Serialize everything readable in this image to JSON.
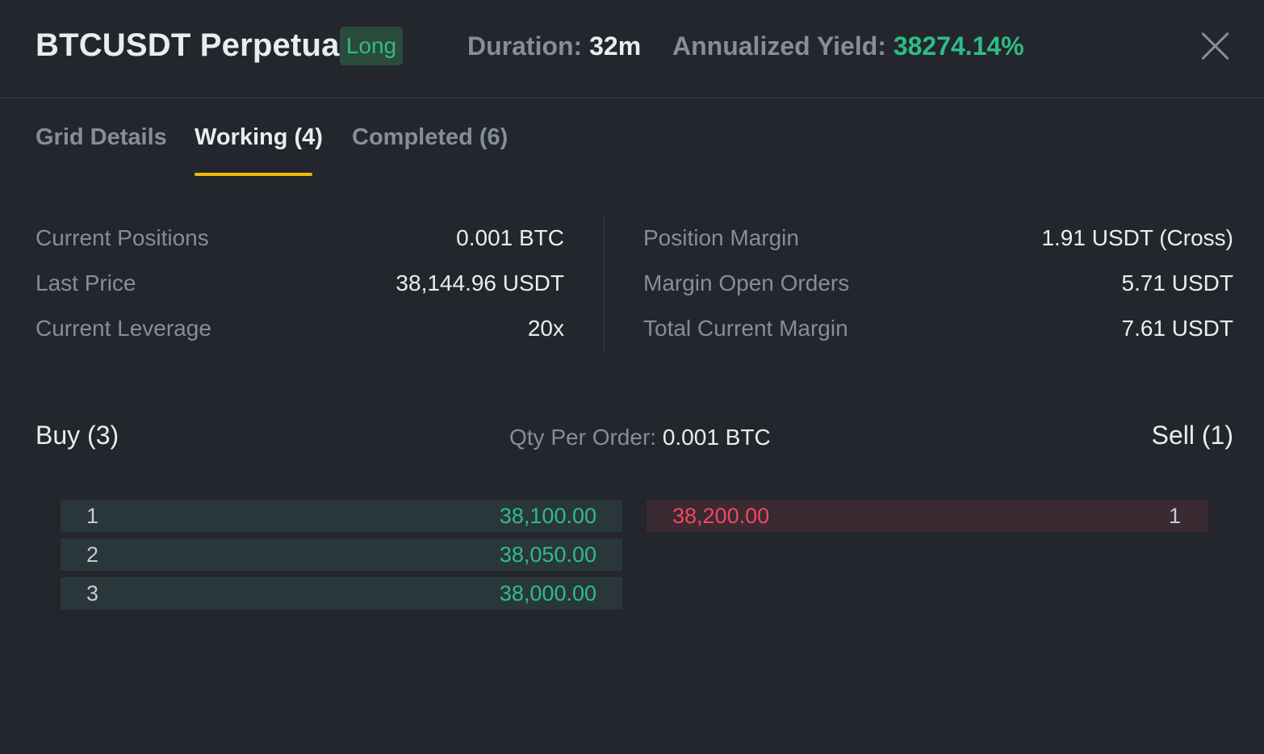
{
  "header": {
    "title": "BTCUSDT Perpetual",
    "badge": "Long",
    "duration_label": "Duration:",
    "duration_value": "32m",
    "yield_label": "Annualized Yield:",
    "yield_value": "38274.14%"
  },
  "tabs": [
    {
      "label": "Grid Details",
      "active": false
    },
    {
      "label": "Working (4)",
      "active": true
    },
    {
      "label": "Completed (6)",
      "active": false
    }
  ],
  "info_left": [
    {
      "label": "Current Positions",
      "value": "0.001 BTC"
    },
    {
      "label": "Last Price",
      "value": "38,144.96 USDT"
    },
    {
      "label": "Current Leverage",
      "value": "20x"
    }
  ],
  "info_right": [
    {
      "label": "Position Margin",
      "value": "1.91 USDT (Cross)"
    },
    {
      "label": "Margin Open Orders",
      "value": "5.71 USDT"
    },
    {
      "label": "Total Current Margin",
      "value": "7.61 USDT"
    }
  ],
  "orders": {
    "buy_title": "Buy (3)",
    "sell_title": "Sell (1)",
    "qty_label": "Qty Per Order:",
    "qty_value": "0.001 BTC",
    "buy": [
      {
        "index": "1",
        "price": "38,100.00"
      },
      {
        "index": "2",
        "price": "38,050.00"
      },
      {
        "index": "3",
        "price": "38,000.00"
      }
    ],
    "sell": [
      {
        "index": "1",
        "price": "38,200.00"
      }
    ]
  },
  "colors": {
    "background": "#23262c",
    "accent": "#f0b90b",
    "buy": "#2ebd85",
    "sell": "#f6465d"
  },
  "icons": {
    "close": "close-icon"
  }
}
